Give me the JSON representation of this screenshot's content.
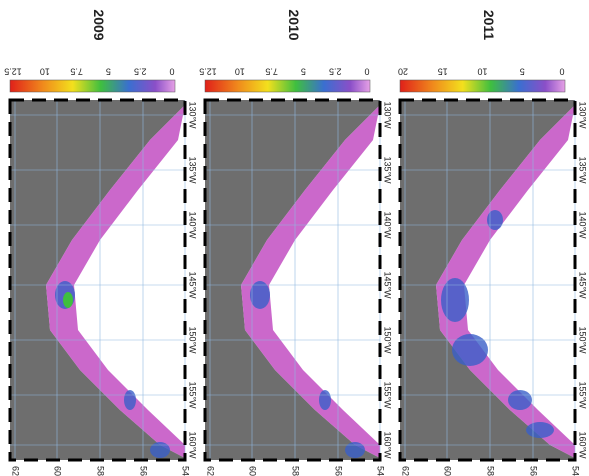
{
  "panels": [
    {
      "title": "2009",
      "colorbar_ticks": [
        "12.5",
        "10",
        "7.5",
        "5",
        "2.5",
        "0"
      ]
    },
    {
      "title": "2010",
      "colorbar_ticks": [
        "12.5",
        "10",
        "7.5",
        "5",
        "2.5",
        "0"
      ]
    },
    {
      "title": "2011",
      "colorbar_ticks": [
        "20",
        "15",
        "10",
        "5",
        "0"
      ]
    }
  ],
  "lon_labels": [
    "130°W",
    "135°W",
    "140°W",
    "145°W",
    "150°W",
    "155°W",
    "160°W"
  ],
  "lat_labels": [
    "62°N",
    "60°N",
    "58°N",
    "56°N",
    "54°N"
  ]
}
